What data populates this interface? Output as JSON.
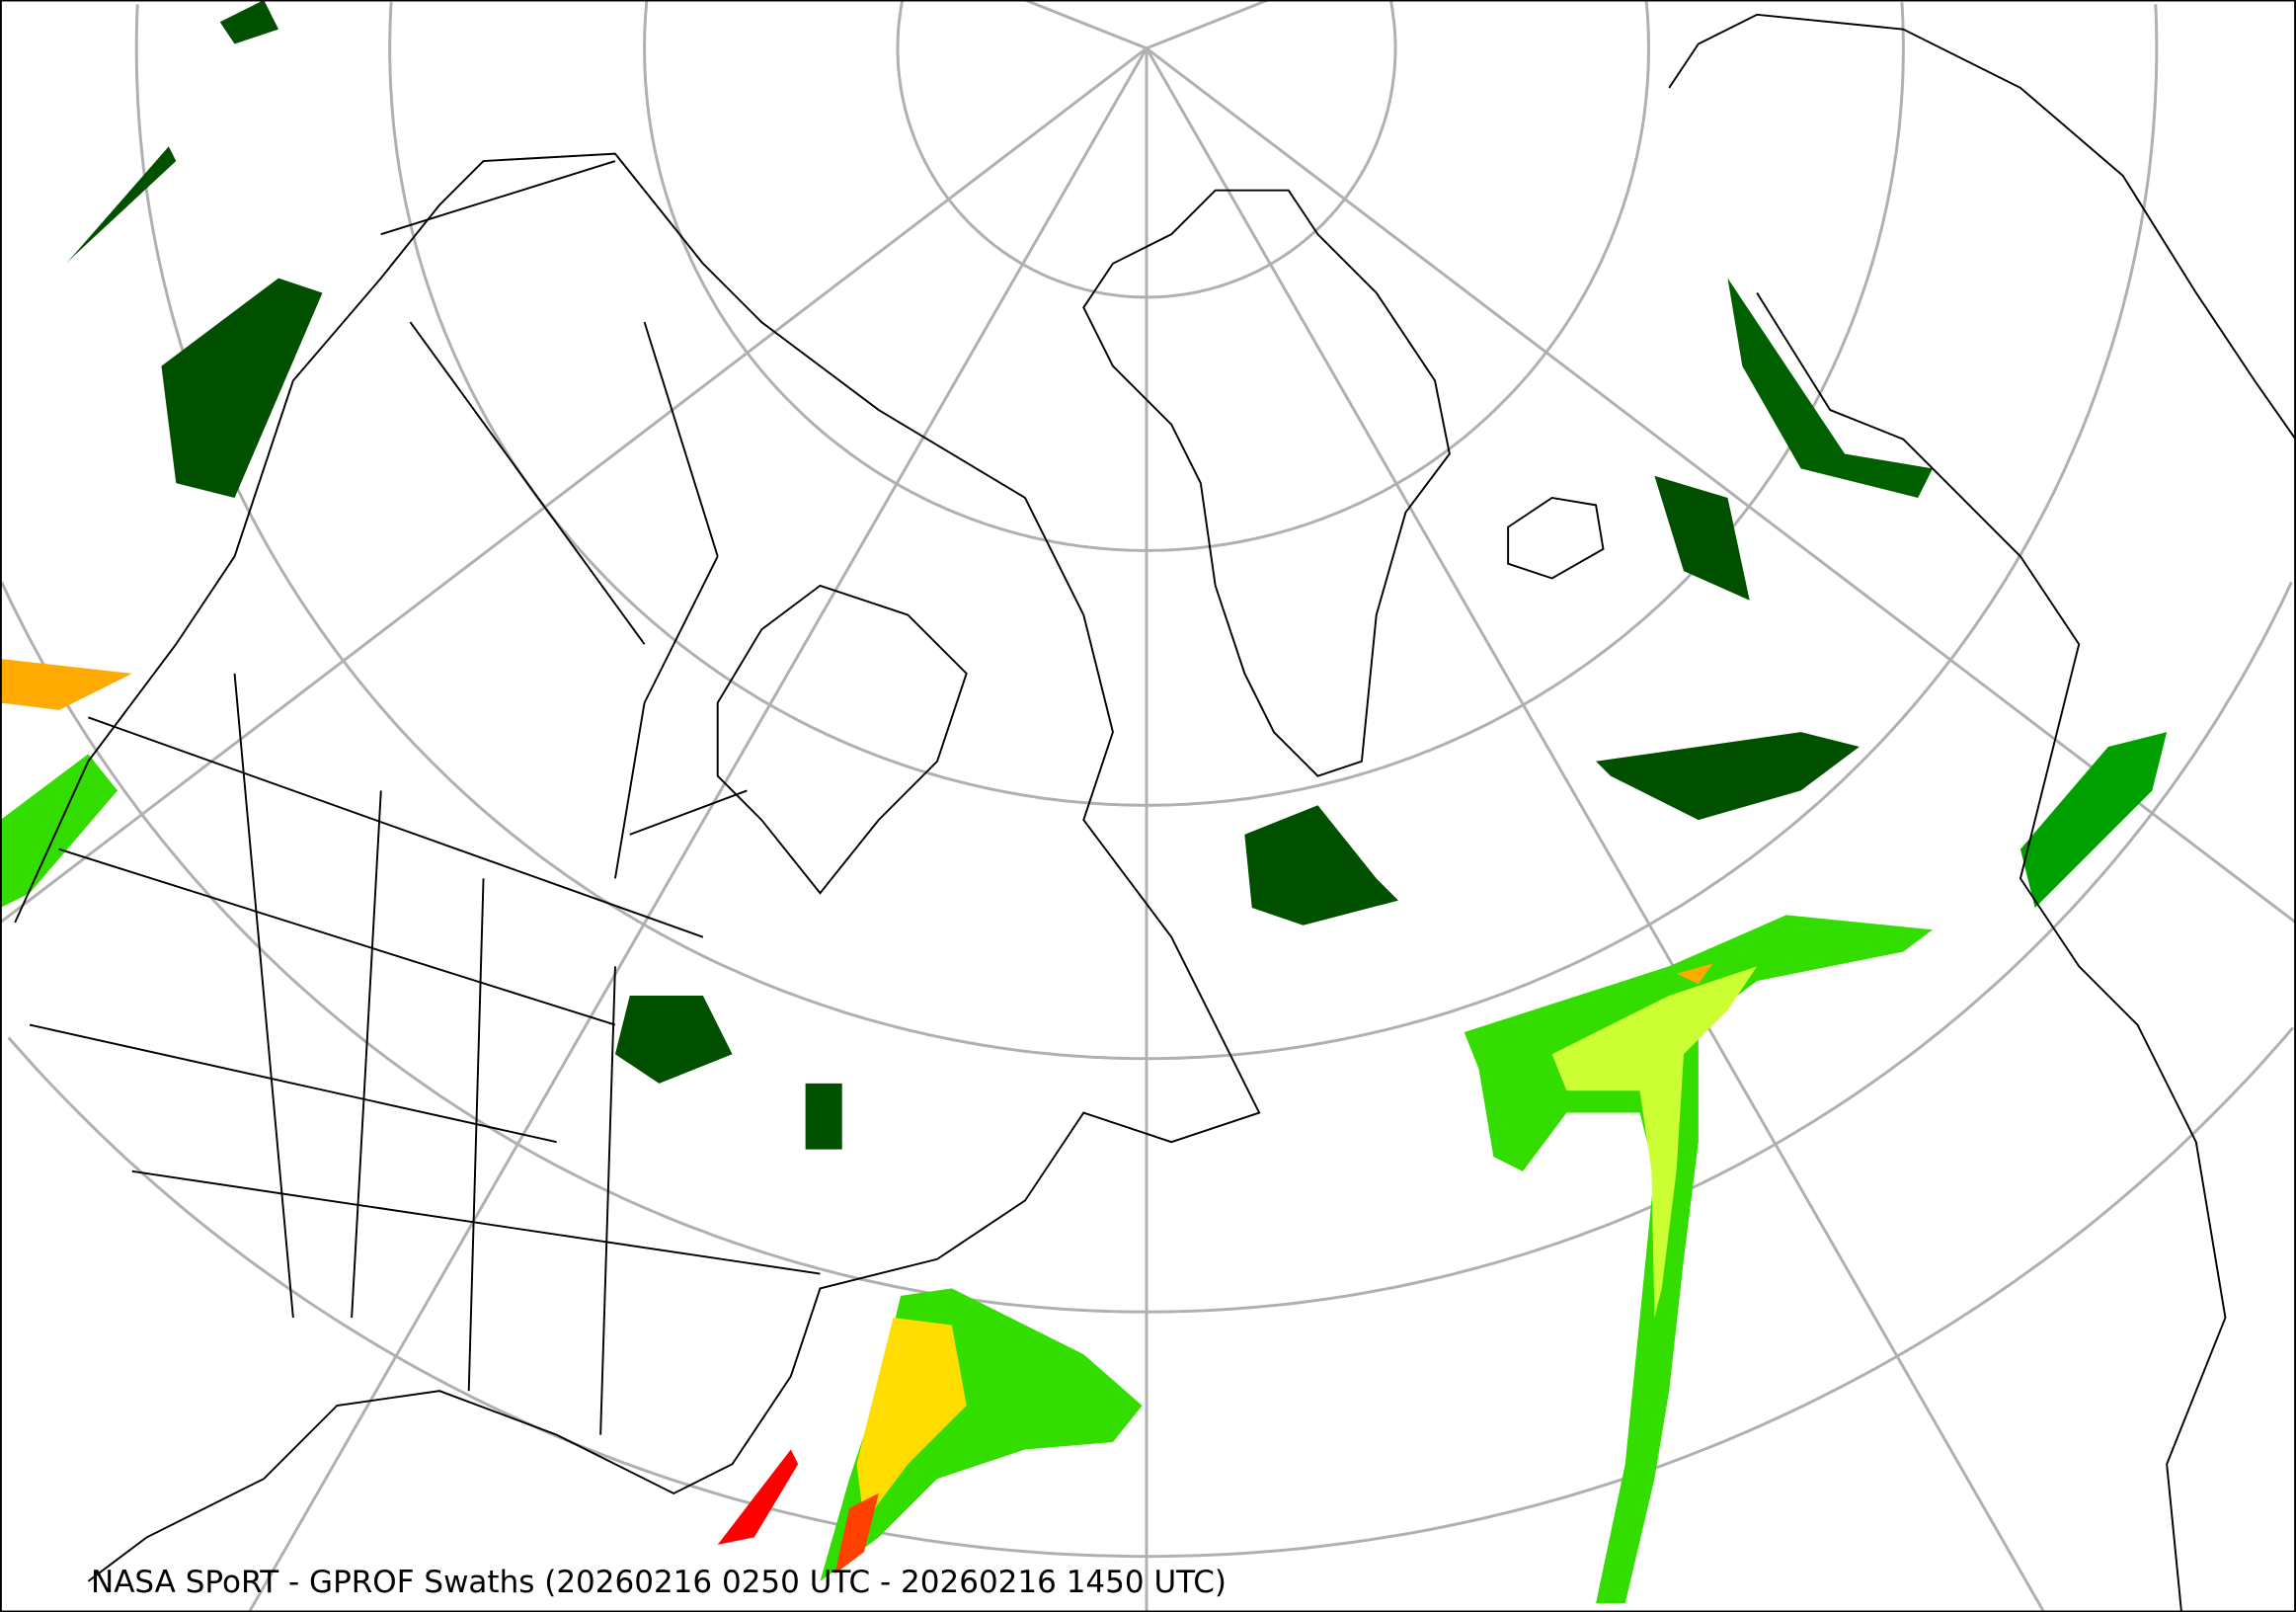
{
  "map": {
    "title": "NASA SPoRT - GPROF Swaths (20260216 0250 UTC - 20260216 1450 UTC)",
    "projection": "north-polar-stereographic",
    "graticule": true,
    "colors": {
      "graticule": "#b0b0b0",
      "coastline": "#000000",
      "precip_light": "#005000",
      "precip_low": "#00a000",
      "precip_moderate": "#33dd00",
      "precip_mid": "#ccff33",
      "precip_high": "#ffdd00",
      "precip_heavy": "#ff8c00",
      "precip_extreme": "#ff0000"
    }
  }
}
